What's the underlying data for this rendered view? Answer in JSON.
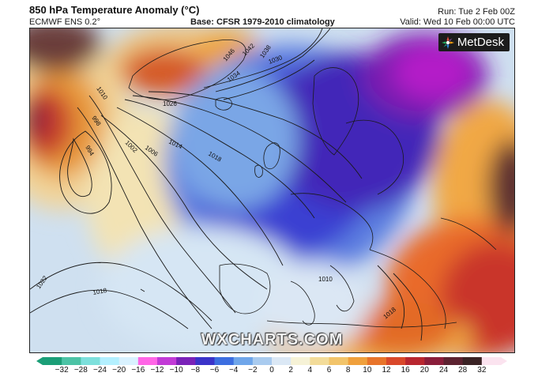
{
  "header": {
    "title": "850 hPa Temperature Anomaly (°C)",
    "model": "ECMWF ENS 0.2°",
    "base": "Base: CFSR 1979-2010 climatology",
    "run": "Run: Tue 2 Feb 00Z",
    "valid": "Valid: Wed 10 Feb 00:00 UTC"
  },
  "branding": {
    "logo_text": "MetDesk",
    "watermark": "WXCHARTS.COM"
  },
  "map": {
    "isobar_labels": [
      "1010",
      "998",
      "994",
      "1002",
      "1006",
      "1014",
      "1018",
      "1026",
      "1034",
      "1042",
      "1038",
      "1046",
      "1030",
      "1018",
      "1022",
      "1010",
      "1018"
    ]
  },
  "colorbar": {
    "ticks": [
      "−32",
      "−28",
      "−24",
      "−20",
      "−16",
      "−12",
      "−10",
      "−8",
      "−6",
      "−4",
      "−2",
      "0",
      "2",
      "4",
      "6",
      "8",
      "10",
      "12",
      "16",
      "20",
      "24",
      "28",
      "32"
    ],
    "colors": [
      "#1b9e77",
      "#4cc3a5",
      "#7de0dc",
      "#b3f0ff",
      "#d9f2ff",
      "#ff66e6",
      "#c23bd6",
      "#7a22b8",
      "#3a33c9",
      "#3c6ee0",
      "#6fa6ea",
      "#a9cbef",
      "#dbe8f5",
      "#f6f2d6",
      "#f3dc9a",
      "#f2c46a",
      "#f0a03c",
      "#e8742a",
      "#d9482a",
      "#b8262f",
      "#8a1d3a",
      "#5c2230",
      "#3a2224",
      "#fbe3ef"
    ]
  }
}
